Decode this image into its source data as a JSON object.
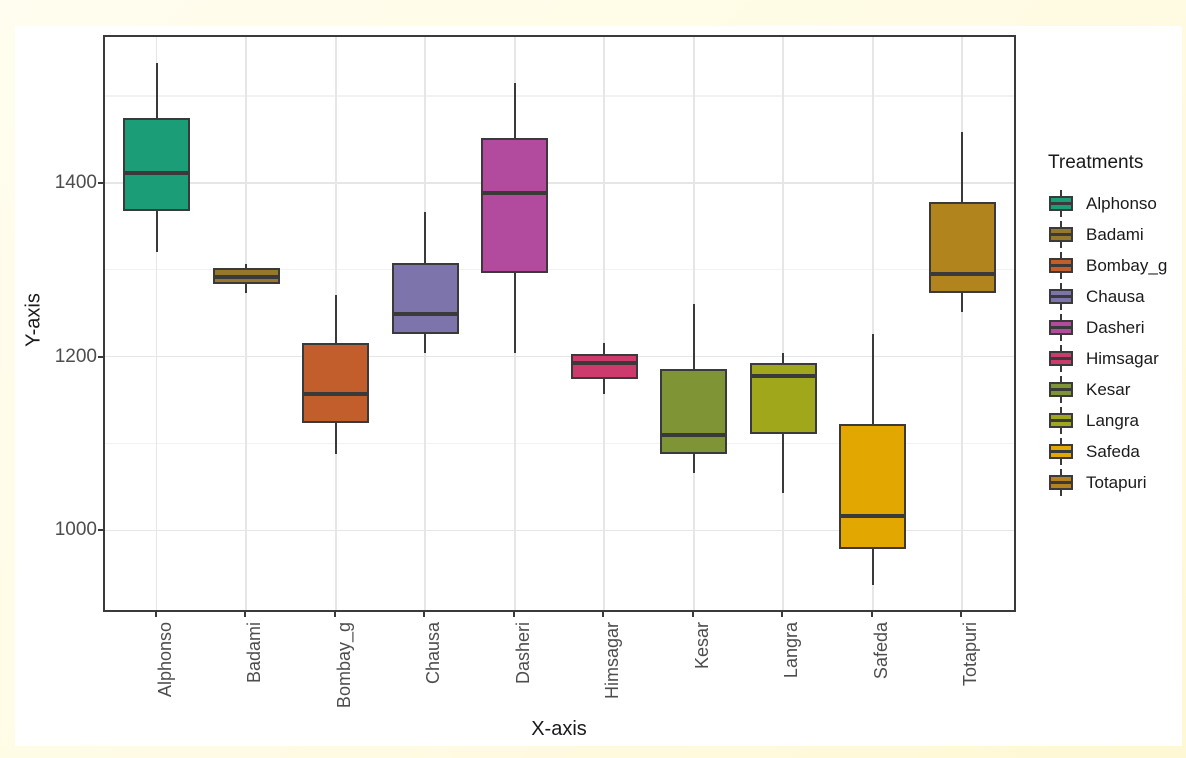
{
  "chart_data": {
    "type": "boxplot",
    "xlabel": "X-axis",
    "ylabel": "Y-axis",
    "legend_title": "Treatments",
    "legend_position": "right",
    "ylim": [
      906,
      1570
    ],
    "y_major_ticks": [
      1000,
      1200,
      1400
    ],
    "y_minor_gridlines": [
      1100,
      1300,
      1500
    ],
    "grid": "on",
    "categories": [
      "Alphonso",
      "Badami",
      "Bombay_g",
      "Chausa",
      "Dasheri",
      "Himsagar",
      "Kesar",
      "Langra",
      "Safeda",
      "Totapuri"
    ],
    "series": [
      {
        "name": "Alphonso",
        "color": "#1B9E77",
        "min": 1320,
        "q1": 1367,
        "median": 1411,
        "q3": 1475,
        "max": 1538
      },
      {
        "name": "Badami",
        "color": "#97772B",
        "min": 1273,
        "q1": 1283,
        "median": 1292,
        "q3": 1302,
        "max": 1307
      },
      {
        "name": "Bombay_g",
        "color": "#C25E2B",
        "min": 1088,
        "q1": 1123,
        "median": 1157,
        "q3": 1216,
        "max": 1271
      },
      {
        "name": "Chausa",
        "color": "#7C74AB",
        "min": 1204,
        "q1": 1226,
        "median": 1249,
        "q3": 1308,
        "max": 1366
      },
      {
        "name": "Dasheri",
        "color": "#B24A9E",
        "min": 1204,
        "q1": 1296,
        "median": 1388,
        "q3": 1452,
        "max": 1515
      },
      {
        "name": "Himsagar",
        "color": "#CC3A6E",
        "min": 1157,
        "q1": 1174,
        "median": 1192,
        "q3": 1203,
        "max": 1215
      },
      {
        "name": "Kesar",
        "color": "#7E9435",
        "min": 1066,
        "q1": 1088,
        "median": 1110,
        "q3": 1186,
        "max": 1261
      },
      {
        "name": "Langra",
        "color": "#A1A71B",
        "min": 1043,
        "q1": 1111,
        "median": 1178,
        "q3": 1193,
        "max": 1204
      },
      {
        "name": "Safeda",
        "color": "#E3A702",
        "min": 937,
        "q1": 979,
        "median": 1017,
        "q3": 1122,
        "max": 1226
      },
      {
        "name": "Totapuri",
        "color": "#B2841E",
        "min": 1251,
        "q1": 1273,
        "median": 1295,
        "q3": 1378,
        "max": 1458
      }
    ],
    "style": {
      "box_border_color": "#3a3a3a",
      "grid_major_color": "#e6e6e6",
      "grid_minor_color": "#f2f2f2",
      "page_background": "#FFFBE3",
      "panel_background": "#ffffff"
    }
  }
}
